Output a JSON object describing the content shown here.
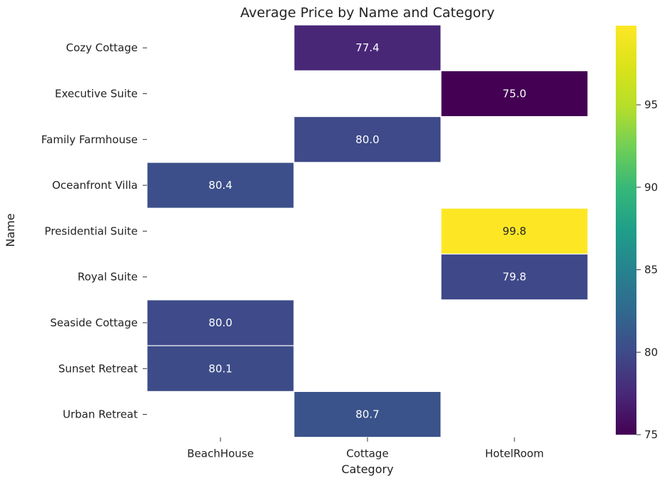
{
  "chart_data": {
    "type": "heatmap",
    "title": "Average Price by Name and Category",
    "xlabel": "Category",
    "ylabel": "Name",
    "x_categories": [
      "BeachHouse",
      "Cottage",
      "HotelRoom"
    ],
    "y_categories": [
      "Cozy Cottage",
      "Executive Suite",
      "Family Farmhouse",
      "Oceanfront Villa",
      "Presidential Suite",
      "Royal Suite",
      "Seaside Cottage",
      "Sunset Retreat",
      "Urban Retreat"
    ],
    "values": [
      [
        null,
        77.4,
        null
      ],
      [
        null,
        null,
        75.0
      ],
      [
        null,
        80.0,
        null
      ],
      [
        80.4,
        null,
        null
      ],
      [
        null,
        null,
        99.8
      ],
      [
        null,
        null,
        79.8
      ],
      [
        80.0,
        null,
        null
      ],
      [
        80.1,
        null,
        null
      ],
      [
        null,
        80.7,
        null
      ]
    ],
    "colormap": "viridis",
    "colorbar": {
      "min": 75.0,
      "max": 99.8,
      "ticks": [
        75,
        80,
        85,
        90,
        95
      ]
    },
    "grid": false,
    "annotations": true
  }
}
